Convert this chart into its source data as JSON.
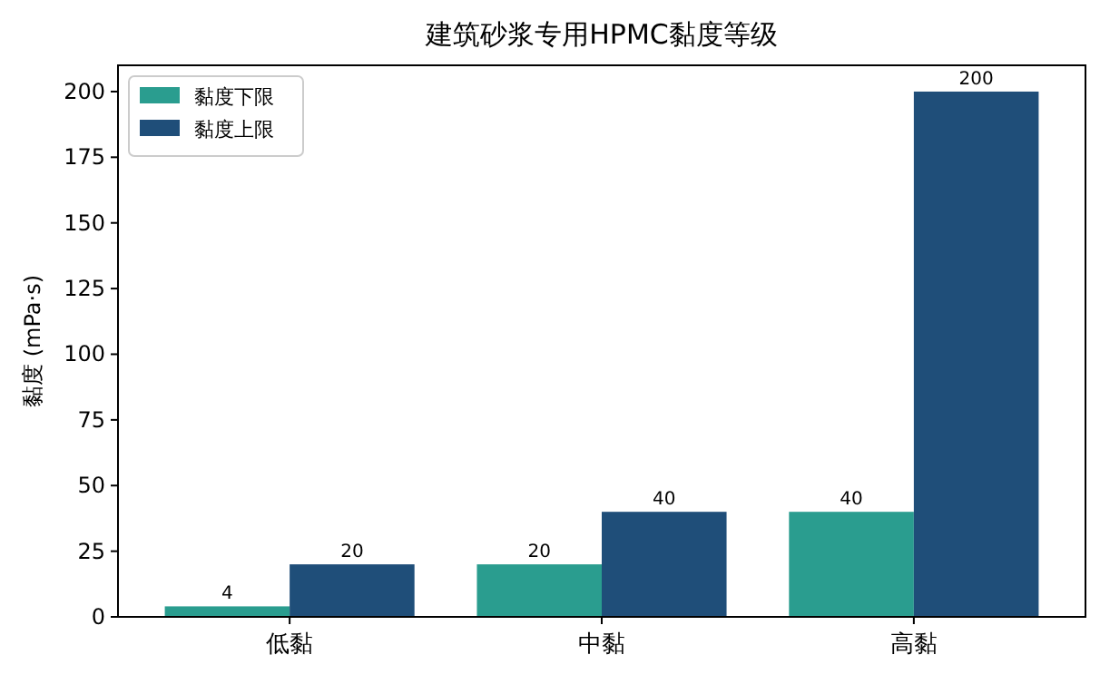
{
  "chart_data": {
    "type": "bar",
    "title": "建筑砂浆专用HPMC黏度等级",
    "ylabel": "黏度 (mPa·s)",
    "categories": [
      "低黏",
      "中黏",
      "高黏"
    ],
    "series": [
      {
        "name": "黏度下限",
        "color": "#2a9d8f",
        "values": [
          4,
          20,
          40
        ]
      },
      {
        "name": "黏度上限",
        "color": "#1f4e79",
        "values": [
          20,
          40,
          200
        ]
      }
    ],
    "ylim": [
      0,
      210
    ],
    "yticks": [
      0,
      25,
      50,
      75,
      100,
      125,
      150,
      175,
      200
    ],
    "data_labels": true,
    "legend": "top left"
  }
}
